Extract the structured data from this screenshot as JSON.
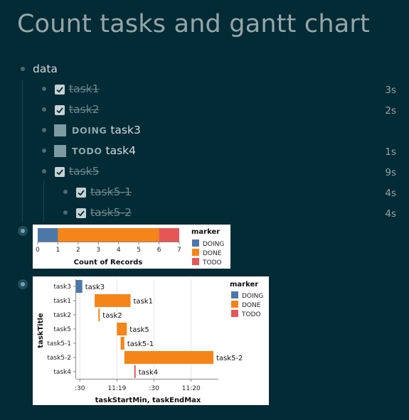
{
  "page": {
    "title": "Count tasks and gantt chart"
  },
  "outline": {
    "root_label": "data",
    "items": [
      {
        "label": "task1",
        "done": true,
        "time": "3s"
      },
      {
        "label": "task2",
        "done": true,
        "time": "2s"
      },
      {
        "label": "task3",
        "done": false,
        "keyword": "DOING",
        "time": ""
      },
      {
        "label": "task4",
        "done": false,
        "keyword": "TODO",
        "time": "1s"
      },
      {
        "label": "task5",
        "done": true,
        "time": "9s"
      },
      {
        "label": "task5-1",
        "done": true,
        "time": "4s"
      },
      {
        "label": "task5-2",
        "done": true,
        "time": "4s"
      }
    ]
  },
  "chart_data": [
    {
      "type": "bar",
      "orientation": "horizontal-stacked",
      "xlabel": "Count of Records",
      "xlim": [
        0,
        7
      ],
      "x_ticks": [
        "0",
        "1",
        "2",
        "3",
        "4",
        "5",
        "6",
        "7"
      ],
      "series": [
        {
          "name": "DOING",
          "value": 1,
          "color": "#4c78a8"
        },
        {
          "name": "DONE",
          "value": 5,
          "color": "#f58518"
        },
        {
          "name": "TODO",
          "value": 1,
          "color": "#e45756"
        }
      ],
      "legend": {
        "title": "marker",
        "position": "right",
        "entries": [
          "DOING",
          "DONE",
          "TODO"
        ]
      }
    },
    {
      "type": "gantt",
      "xlabel": "taskStartMin, taskEndMax",
      "ylabel": "taskTitle",
      "x_unit": "seconds after 11:18:30",
      "xlim": [
        -3,
        112
      ],
      "x_ticks": [
        {
          "label": ":30",
          "value": 0
        },
        {
          "label": "11:19",
          "value": 30
        },
        {
          "label": ":30",
          "value": 60
        },
        {
          "label": "11:20",
          "value": 90
        }
      ],
      "categories": [
        "task3",
        "task1",
        "task2",
        "task5",
        "task5-1",
        "task5-2",
        "task4"
      ],
      "tasks": [
        {
          "task": "task3",
          "marker": "DOING",
          "start": -3,
          "end": 2
        },
        {
          "task": "task1",
          "marker": "DONE",
          "start": 12,
          "end": 41
        },
        {
          "task": "task2",
          "marker": "DONE",
          "start": 15,
          "end": 16
        },
        {
          "task": "task5",
          "marker": "DONE",
          "start": 30,
          "end": 38
        },
        {
          "task": "task5-1",
          "marker": "DONE",
          "start": 33,
          "end": 36
        },
        {
          "task": "task5-2",
          "marker": "DONE",
          "start": 36,
          "end": 108
        },
        {
          "task": "task4",
          "marker": "TODO",
          "start": 44,
          "end": 45
        }
      ],
      "colors": {
        "DOING": "#4c78a8",
        "DONE": "#f58518",
        "TODO": "#e45756"
      },
      "legend": {
        "title": "marker",
        "position": "right",
        "entries": [
          "DOING",
          "DONE",
          "TODO"
        ]
      }
    }
  ]
}
